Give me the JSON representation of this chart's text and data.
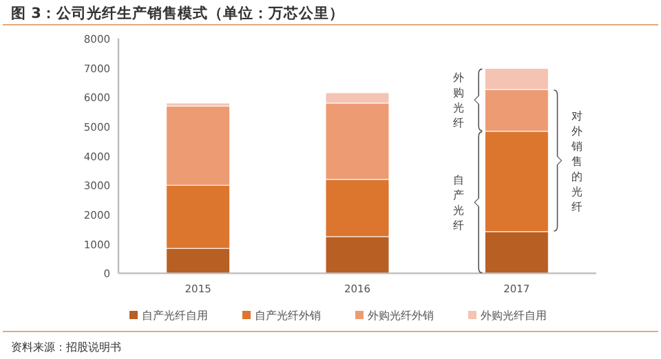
{
  "chart_data": {
    "type": "bar",
    "stacked": true,
    "title": "图 3：公司光纤生产销售模式（单位：万芯公里）",
    "categories": [
      "2015",
      "2016",
      "2017"
    ],
    "series": [
      {
        "name": "自产光纤自用",
        "color": "#b85f24",
        "values": [
          850,
          1250,
          1420
        ]
      },
      {
        "name": "自产光纤外销",
        "color": "#dc752e",
        "values": [
          2150,
          1950,
          3420
        ]
      },
      {
        "name": "外购光纤外销",
        "color": "#ed9b73",
        "values": [
          2700,
          2600,
          1420
        ]
      },
      {
        "name": "外购光纤自用",
        "color": "#f5c3b3",
        "values": [
          100,
          350,
          720
        ]
      }
    ],
    "ylim": [
      0,
      8000
    ],
    "yticks": [
      0,
      1000,
      2000,
      3000,
      4000,
      5000,
      6000,
      7000,
      8000
    ],
    "grid": false,
    "legend": "bottom",
    "annotations": [
      "外购光纤",
      "自产光纤",
      "对外销售的光纤",
      "资料来源：招股说明书"
    ]
  }
}
